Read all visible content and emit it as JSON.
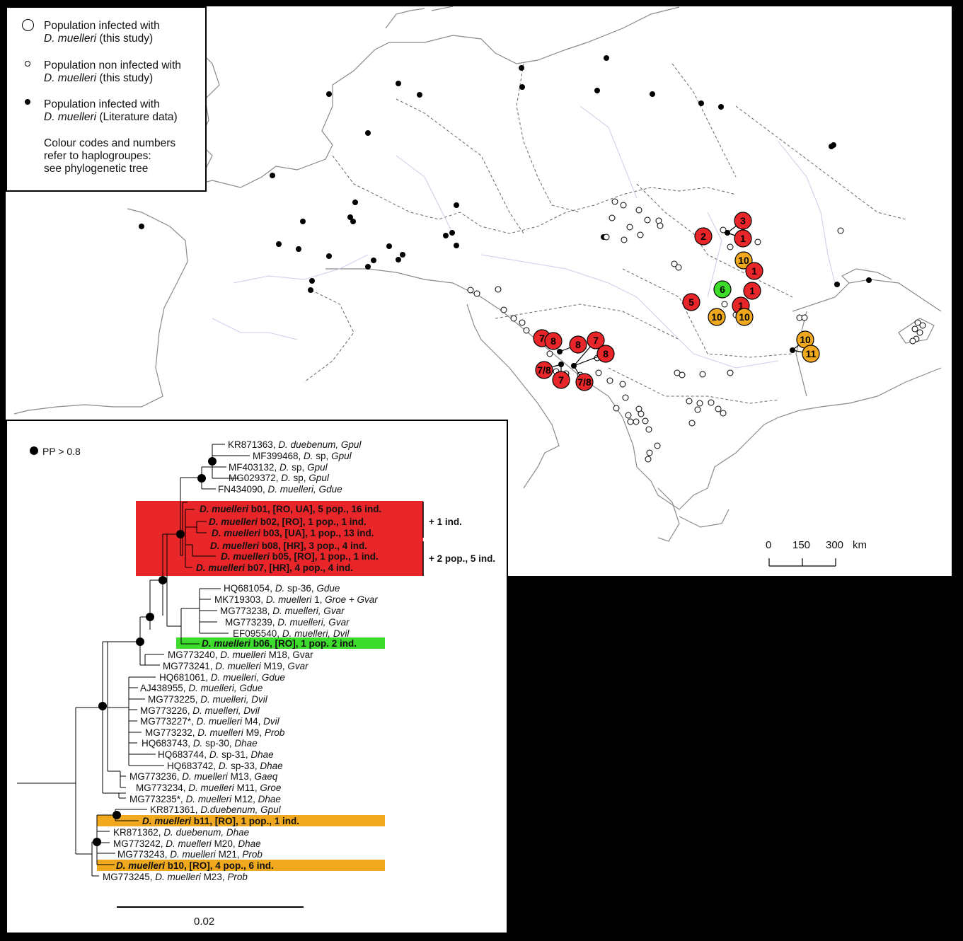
{
  "legend": {
    "items": [
      {
        "line1": "Population infected with",
        "line2a": "D. muelleri",
        "line2b": " (this study)"
      },
      {
        "line1": "Population non infected with",
        "line2a": "D. muelleri",
        "line2b": " (this study)"
      },
      {
        "line1": "Population infected with",
        "line2a": "D. muelleri",
        "line2b": " (Literature data)"
      }
    ],
    "note": [
      "Colour codes and numbers",
      "refer to haplogroupes:",
      "see phylogenetic tree"
    ]
  },
  "map_scale": {
    "t0": "0",
    "t1": "150",
    "t2": "300",
    "unit": "km"
  },
  "haplogroup_colors": {
    "red": "#e8262a",
    "orange": "#f0a91e",
    "green": "#3ddb2b"
  },
  "markers": [
    {
      "label": "3",
      "color": "red"
    },
    {
      "label": "2",
      "color": "red"
    },
    {
      "label": "1",
      "color": "red"
    },
    {
      "label": "10",
      "color": "orange"
    },
    {
      "label": "1",
      "color": "red"
    },
    {
      "label": "6",
      "color": "green"
    },
    {
      "label": "1",
      "color": "red"
    },
    {
      "label": "5",
      "color": "red"
    },
    {
      "label": "1",
      "color": "red"
    },
    {
      "label": "10",
      "color": "orange"
    },
    {
      "label": "10",
      "color": "orange"
    },
    {
      "label": "10",
      "color": "orange"
    },
    {
      "label": "11",
      "color": "orange"
    },
    {
      "label": "7",
      "color": "red"
    },
    {
      "label": "8",
      "color": "red"
    },
    {
      "label": "8",
      "color": "red"
    },
    {
      "label": "7",
      "color": "red"
    },
    {
      "label": "8",
      "color": "red"
    },
    {
      "label": "7/8",
      "color": "red"
    },
    {
      "label": "7",
      "color": "red"
    },
    {
      "label": "7/8",
      "color": "red"
    }
  ],
  "tree": {
    "pp_label": "PP > 0.8",
    "scale_label": "0.02",
    "bracket1": "+ 1 ind.",
    "bracket2": "+ 2 pop., 5 ind.",
    "tips": [
      {
        "a": "KR871363, ",
        "i": "D. duebenum, Gpul",
        "b": ""
      },
      {
        "a": "MF399468, ",
        "i": "D.",
        "b": " sp, ",
        "i2": "Gpul"
      },
      {
        "a": "MF403132, ",
        "i": "D.",
        "b": " sp,  ",
        "i2": "Gpul"
      },
      {
        "a": "MG029372, ",
        "i": "D.",
        "b": " sp, ",
        "i2": "Gpul"
      },
      {
        "a": "FN434090, ",
        "i": "D. muelleri, Gdue",
        "b": ""
      },
      {
        "bi": "D. muelleri",
        "bb": " b01, [RO, UA], 5 pop., 16 ind."
      },
      {
        "bi": "D. muelleri",
        "bb": " b02, [RO], 1 pop., 1 ind."
      },
      {
        "bi": "D. muelleri",
        "bb": " b03, [UA], 1 pop., 13 ind."
      },
      {
        "bi": "D. muelleri",
        "bb": " b08, [HR], 3 pop., 4 ind."
      },
      {
        "bi": "D. muelleri",
        "bb": " b05, [RO], 1 pop., 1 ind."
      },
      {
        "bi": "D. muelleri",
        "bb": " b07, [HR], 4 pop., 4 ind."
      },
      {
        "a": "HQ681054, ",
        "i": "D.",
        "b": " sp-36, ",
        "i2": "Gdue"
      },
      {
        "a": "MK719303, ",
        "i": "D. muelleri",
        "b": " 1, ",
        "i2": "Groe + Gvar"
      },
      {
        "a": "MG773238, ",
        "i": "D. muelleri, Gvar",
        "b": ""
      },
      {
        "a": "MG773239, ",
        "i": "D. muelleri, Gvar",
        "b": ""
      },
      {
        "a": "EF095540, ",
        "i": "D. muelleri, Dvil",
        "b": ""
      },
      {
        "bi": "D. muelleri",
        "bb": " b06, [RO], 1 pop. 2 ind."
      },
      {
        "a": "MG773240, ",
        "i": "D. muelleri",
        "b": " M18, Gvar"
      },
      {
        "a": "MG773241, ",
        "i": "D. muelleri",
        "b": " M19, ",
        "i2": "Gvar"
      },
      {
        "a": "HQ681061, ",
        "i": "D. muelleri, Gdue",
        "b": ""
      },
      {
        "a": "AJ438955, ",
        "i": "D. muelleri, Gdue",
        "b": ""
      },
      {
        "a": "MG773225, ",
        "i": "D. muelleri, Dvil",
        "b": ""
      },
      {
        "a": "MG773226, ",
        "i": "D. muelleri, Dvil",
        "b": ""
      },
      {
        "a": "MG773227*, ",
        "i": "D. muelleri",
        "b": " M4, ",
        "i2": "Dvil"
      },
      {
        "a": "MG773232, ",
        "i": "D. muelleri",
        "b": " M9, ",
        "i2": "Prob"
      },
      {
        "a": "HQ683743, ",
        "i": "D.",
        "b": " sp-30, ",
        "i2": "Dhae"
      },
      {
        "a": "HQ683744, ",
        "i": "D.",
        "b": " sp-31, ",
        "i2": "Dhae"
      },
      {
        "a": "HQ683742, ",
        "i": "D.",
        "b": " sp-33, ",
        "i2": "Dhae"
      },
      {
        "a": "MG773236, ",
        "i": "D. muelleri",
        "b": " M13, ",
        "i2": "Gaeq"
      },
      {
        "a": "MG773234, ",
        "i": "D. muelleri",
        "b": " M11, ",
        "i2": "Groe"
      },
      {
        "a": "MG773235*, ",
        "i": "D. muelleri",
        "b": " M12, ",
        "i2": "Dhae"
      },
      {
        "a": "KR871361, ",
        "i": "D.duebenum, Gpul",
        "b": ""
      },
      {
        "bi": "D. muelleri",
        "bb": " b11, [RO], 1 pop., 1 ind."
      },
      {
        "a": "KR871362, ",
        "i": "D. duebenum, Dhae",
        "b": ""
      },
      {
        "a": "MG773242, ",
        "i": "D. muelleri",
        "b": " M20, ",
        "i2": "Dhae"
      },
      {
        "a": "MG773243, ",
        "i": "D. muelleri",
        "b": " M21, ",
        "i2": "Prob"
      },
      {
        "bi": "D. muelleri",
        "bb": " b10, [RO], 4 pop., 6 ind."
      },
      {
        "a": "MG773245, ",
        "i": "D. muelleri",
        "b": " M23, ",
        "i2": "Prob"
      }
    ]
  }
}
